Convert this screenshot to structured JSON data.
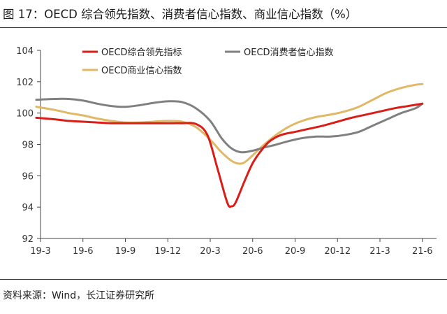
{
  "title": "图 17：OECD 综合领先指数、消费者信心指数、商业信心指数（%）",
  "source": "资料来源：Wind，长江证券研究所",
  "chart_data": {
    "type": "line",
    "ylim": [
      92,
      104
    ],
    "yticks": [
      92,
      94,
      96,
      98,
      100,
      102,
      104
    ],
    "xlim": [
      0,
      28
    ],
    "xticks": [
      {
        "label": "19-3",
        "x": 0
      },
      {
        "label": "19-6",
        "x": 3
      },
      {
        "label": "19-9",
        "x": 6
      },
      {
        "label": "19-12",
        "x": 9
      },
      {
        "label": "20-3",
        "x": 12
      },
      {
        "label": "20-6",
        "x": 15
      },
      {
        "label": "20-9",
        "x": 18
      },
      {
        "label": "20-12",
        "x": 21
      },
      {
        "label": "21-3",
        "x": 24
      },
      {
        "label": "21-6",
        "x": 27
      }
    ],
    "legend_position": "top",
    "series": [
      {
        "name": "OECD综合领先指标",
        "color": "#d91e18",
        "width": 3,
        "points": [
          [
            -0.3,
            99.7
          ],
          [
            1,
            99.6
          ],
          [
            2,
            99.5
          ],
          [
            3,
            99.45
          ],
          [
            4,
            99.4
          ],
          [
            5,
            99.35
          ],
          [
            6,
            99.35
          ],
          [
            7,
            99.35
          ],
          [
            8,
            99.35
          ],
          [
            9,
            99.35
          ],
          [
            10,
            99.35
          ],
          [
            11,
            99.3
          ],
          [
            11.8,
            98.6
          ],
          [
            12.5,
            96.5
          ],
          [
            13.2,
            94.3
          ],
          [
            13.5,
            94.05
          ],
          [
            13.8,
            94.3
          ],
          [
            14.4,
            95.6
          ],
          [
            15,
            96.8
          ],
          [
            15.6,
            97.6
          ],
          [
            16.2,
            98.2
          ],
          [
            17,
            98.6
          ],
          [
            18,
            98.8
          ],
          [
            19,
            99.0
          ],
          [
            20,
            99.2
          ],
          [
            21,
            99.45
          ],
          [
            22,
            99.7
          ],
          [
            23,
            99.9
          ],
          [
            24,
            100.1
          ],
          [
            25,
            100.3
          ],
          [
            26,
            100.45
          ],
          [
            27,
            100.6
          ]
        ]
      },
      {
        "name": "OECD消费者信心指数",
        "color": "#808080",
        "width": 3,
        "points": [
          [
            -0.3,
            100.85
          ],
          [
            1,
            100.9
          ],
          [
            2,
            100.9
          ],
          [
            3,
            100.8
          ],
          [
            4,
            100.6
          ],
          [
            5,
            100.45
          ],
          [
            6,
            100.4
          ],
          [
            7,
            100.5
          ],
          [
            8,
            100.65
          ],
          [
            9,
            100.75
          ],
          [
            10,
            100.7
          ],
          [
            11,
            100.3
          ],
          [
            12,
            99.5
          ],
          [
            12.8,
            98.4
          ],
          [
            13.5,
            97.75
          ],
          [
            14.2,
            97.5
          ],
          [
            15,
            97.6
          ],
          [
            15.8,
            97.8
          ],
          [
            16.5,
            97.95
          ],
          [
            17.5,
            98.2
          ],
          [
            18.5,
            98.4
          ],
          [
            19.5,
            98.5
          ],
          [
            20.5,
            98.5
          ],
          [
            21.5,
            98.6
          ],
          [
            22.5,
            98.8
          ],
          [
            23.5,
            99.2
          ],
          [
            24.5,
            99.6
          ],
          [
            25.5,
            100.0
          ],
          [
            26.5,
            100.3
          ],
          [
            27,
            100.6
          ]
        ]
      },
      {
        "name": "OECD商业信心指数",
        "color": "#e0b866",
        "width": 3,
        "points": [
          [
            -0.3,
            100.4
          ],
          [
            1,
            100.2
          ],
          [
            2,
            100.0
          ],
          [
            3,
            99.85
          ],
          [
            4,
            99.65
          ],
          [
            5,
            99.5
          ],
          [
            6,
            99.4
          ],
          [
            7,
            99.4
          ],
          [
            8,
            99.45
          ],
          [
            9,
            99.5
          ],
          [
            10,
            99.45
          ],
          [
            11,
            99.1
          ],
          [
            12,
            98.3
          ],
          [
            12.8,
            97.5
          ],
          [
            13.6,
            96.9
          ],
          [
            14.3,
            96.8
          ],
          [
            15,
            97.3
          ],
          [
            15.7,
            97.9
          ],
          [
            16.5,
            98.5
          ],
          [
            17.5,
            99.1
          ],
          [
            18.5,
            99.5
          ],
          [
            19.5,
            99.75
          ],
          [
            20.5,
            99.9
          ],
          [
            21.5,
            100.1
          ],
          [
            22.5,
            100.4
          ],
          [
            23.5,
            100.85
          ],
          [
            24.5,
            101.3
          ],
          [
            25.5,
            101.6
          ],
          [
            26.5,
            101.8
          ],
          [
            27,
            101.85
          ]
        ]
      }
    ]
  }
}
